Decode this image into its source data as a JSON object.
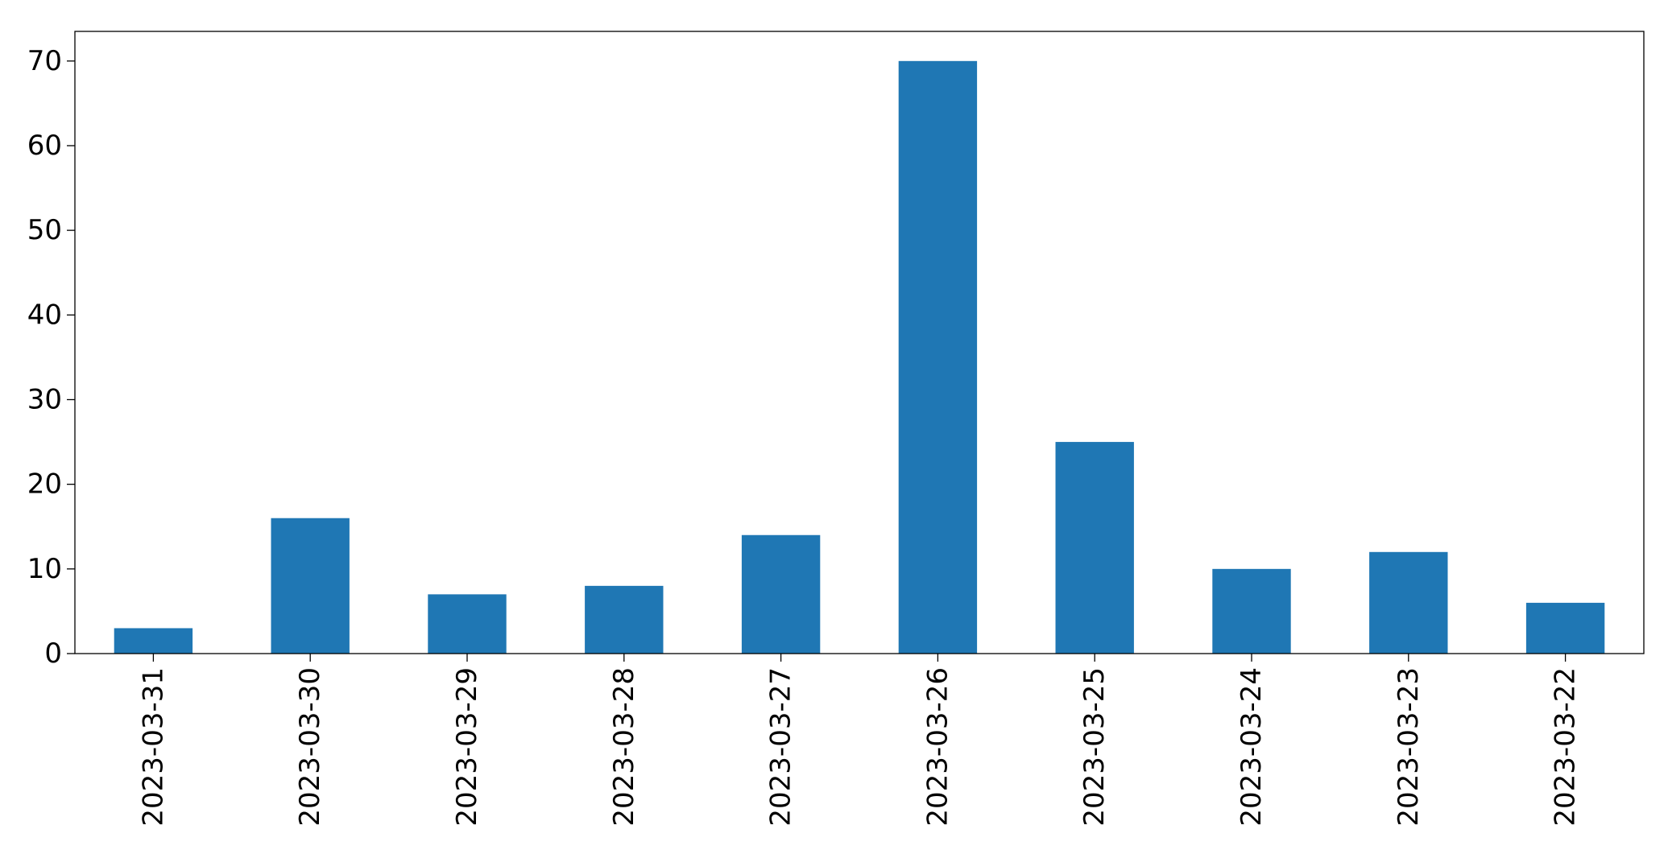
{
  "chart_data": {
    "type": "bar",
    "title": "",
    "xlabel": "",
    "ylabel": "",
    "categories": [
      "2023-03-31",
      "2023-03-30",
      "2023-03-29",
      "2023-03-28",
      "2023-03-27",
      "2023-03-26",
      "2023-03-25",
      "2023-03-24",
      "2023-03-23",
      "2023-03-22"
    ],
    "values": [
      3,
      16,
      7,
      8,
      14,
      70,
      25,
      10,
      12,
      6
    ],
    "ylim": [
      0,
      73.5
    ],
    "yticks": [
      0,
      10,
      20,
      30,
      40,
      50,
      60,
      70
    ],
    "bar_color": "#1f77b4",
    "grid": false,
    "legend": "none"
  }
}
